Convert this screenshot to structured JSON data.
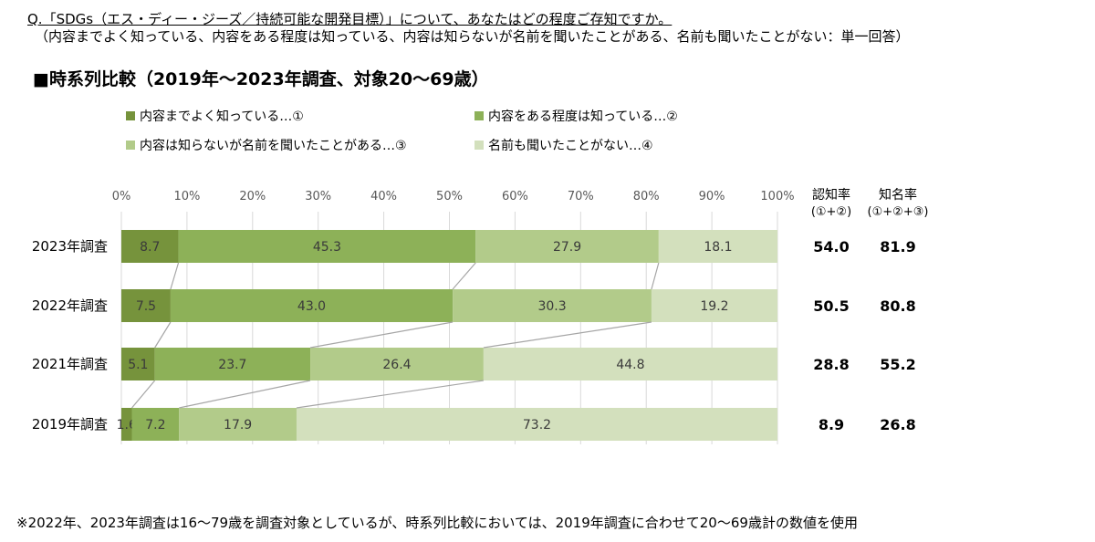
{
  "question": {
    "title": "Q.「SDGs（エス・ディー・ジーズ／持続可能な開発目標）」について、あなたはどの程度ご存知ですか。",
    "subtitle": "（内容までよく知っている、内容をある程度は知っている、内容は知らないが名前を聞いたことがある、名前も聞いたことがない：単一回答）"
  },
  "section_title": "■時系列比較（2019年～2023年調査、対象20～69歳）",
  "note": "※2022年、2023年調査は16～79歳を調査対象としているが、時系列比較においては、2019年調査に合わせて20～69歳計の数値を使用",
  "colors": {
    "s1": "#76933c",
    "s2": "#8db158",
    "s3": "#b2cb8a",
    "s4": "#d3e0bd",
    "connector": "#a6a6a6",
    "grid": "#d9d9d9",
    "tick": "#595959"
  },
  "chart_data": {
    "type": "bar",
    "orientation": "horizontal",
    "stacked": true,
    "unit": "%",
    "xlim": [
      0,
      100
    ],
    "x_ticks": [
      "0%",
      "10%",
      "20%",
      "30%",
      "40%",
      "50%",
      "60%",
      "70%",
      "80%",
      "90%",
      "100%"
    ],
    "categories": [
      "2023年調査",
      "2022年調査",
      "2021年調査",
      "2019年調査"
    ],
    "series": [
      {
        "name": "内容までよく知っている…①",
        "values": [
          8.7,
          7.5,
          5.1,
          1.6
        ]
      },
      {
        "name": "内容をある程度は知っている…②",
        "values": [
          45.3,
          43.0,
          23.7,
          7.2
        ]
      },
      {
        "name": "内容は知らないが名前を聞いたことがある…③",
        "values": [
          27.9,
          30.3,
          26.4,
          17.9
        ]
      },
      {
        "name": "名前も聞いたことがない…④",
        "values": [
          18.1,
          19.2,
          44.8,
          73.2
        ]
      }
    ],
    "legend_position": "top",
    "summary_columns": [
      {
        "header": "認知率",
        "subheader": "(①+②)",
        "values": [
          "54.0",
          "50.5",
          "28.8",
          "8.9"
        ]
      },
      {
        "header": "知名率",
        "subheader": "(①+②+③)",
        "values": [
          "81.9",
          "80.8",
          "55.2",
          "26.8"
        ]
      }
    ]
  }
}
